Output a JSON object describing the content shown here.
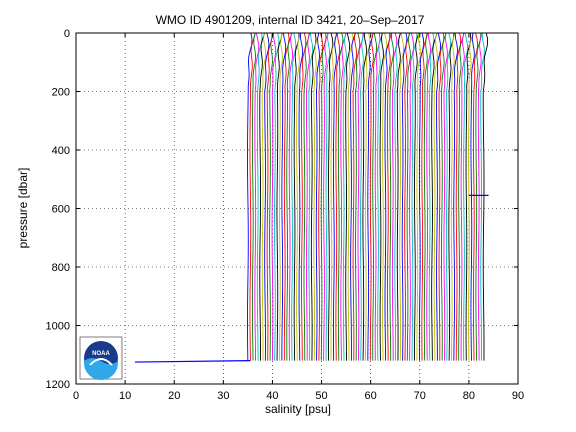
{
  "chart_data": {
    "type": "line",
    "title": "WMO ID 4901209, internal ID 3421, 20–Sep–2017",
    "xlabel": "salinity [psu]",
    "ylabel": "pressure [dbar]",
    "xlim": [
      0,
      90
    ],
    "ylim": [
      0,
      1200
    ],
    "y_reversed": true,
    "grid": true,
    "grid_style": "dotted",
    "xticks": [
      0,
      10,
      20,
      30,
      40,
      50,
      60,
      70,
      80,
      90
    ],
    "yticks": [
      0,
      200,
      400,
      600,
      800,
      1000,
      1200
    ],
    "xtick_labels": [
      "0",
      "10",
      "20",
      "30",
      "40",
      "50",
      "60",
      "70",
      "80",
      "90"
    ],
    "ytick_labels": [
      "0",
      "200",
      "400",
      "600",
      "800",
      "1000",
      "1200"
    ],
    "waterfall": {
      "profile_count": 97,
      "first_offset_psu": 35.0,
      "offset_step_psu": 0.5,
      "surface_depth_dbar": 0,
      "deep_depth_dbar": 1130,
      "base_salinity_psu": 34.6,
      "surface_salinity_psu": 35.6,
      "colors": [
        "#0000ff",
        "#ff0000",
        "#008000",
        "#ff00ff",
        "#00bfbf",
        "#000000",
        "#bfbf00"
      ]
    },
    "annotations": [
      {
        "type": "stray-segment",
        "x": [
          12.0,
          35.5
        ],
        "y": [
          1125,
          1120
        ],
        "color": "#0000ff"
      },
      {
        "type": "stray-segment",
        "x": [
          80.0,
          84.0
        ],
        "y": [
          555,
          555
        ],
        "color": "#0000ff"
      }
    ]
  },
  "logo": {
    "name": "noaa-logo",
    "text": "NOAA"
  },
  "colors": {
    "axis": "#000000",
    "grid": "#000000",
    "background": "#ffffff"
  }
}
